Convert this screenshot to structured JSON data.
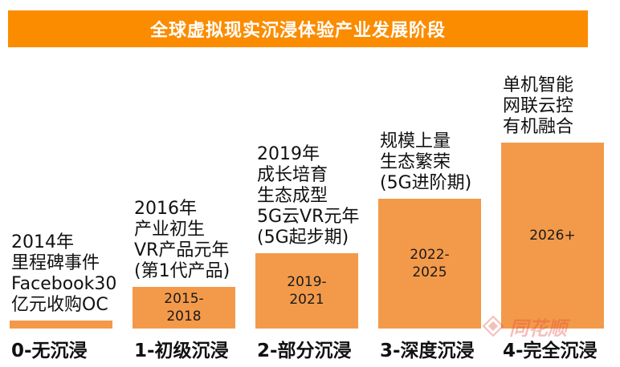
{
  "chart_data": {
    "type": "bar",
    "title": "全球虚拟现实沉浸体验产业发展阶段",
    "stages": [
      {
        "label": "0-无沉浸",
        "years": "",
        "description": "2014年\n里程碑事件\nFacebook30\n亿元收购OC",
        "level": 1
      },
      {
        "label": "1-初级沉浸",
        "years": "2015-\n2018",
        "description": "2016年\n产业初生\nVR产品元年\n(第1代产品)",
        "level": 2
      },
      {
        "label": "2-部分沉浸",
        "years": "2019-\n2021",
        "description": "2019年\n成长培育\n生态成型\n5G云VR元年\n(5G起步期)",
        "level": 3
      },
      {
        "label": "3-深度沉浸",
        "years": "2022-\n2025",
        "description": "规模上量\n生态繁荣\n(5G进阶期)",
        "level": 4
      },
      {
        "label": "4-完全沉浸",
        "years": "2026+",
        "description": "单机智能\n网联云控\n有机融合",
        "level": 5
      }
    ],
    "bar_color": "#f39a4a",
    "title_color": "#fb8c00",
    "grid": false
  },
  "watermark": {
    "text": "同花顺",
    "icon": "tonghuashun-logo-icon",
    "color": "#e24a3b"
  }
}
